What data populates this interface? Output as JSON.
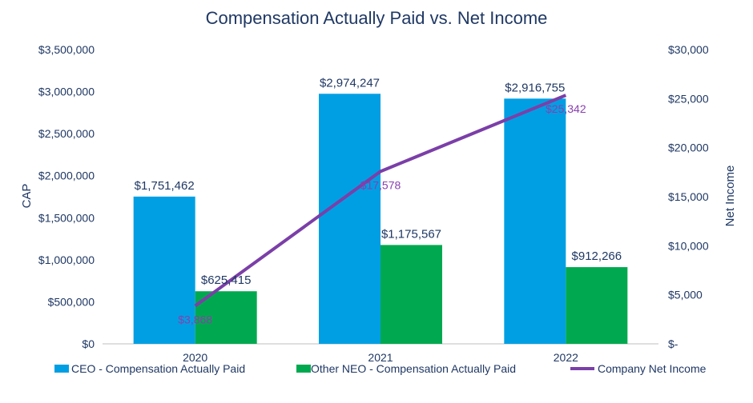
{
  "chart_data": {
    "type": "bar+line",
    "title": "Compensation Actually Paid vs. Net Income",
    "categories": [
      "2020",
      "2021",
      "2022"
    ],
    "series": [
      {
        "name": "CEO - Compensation Actually Paid",
        "type": "bar",
        "axis": "left",
        "color": "#009fe3",
        "values": [
          1751462,
          2974247,
          2916755
        ],
        "labels": [
          "$1,751,462",
          "$2,974,247",
          "$2,916,755"
        ]
      },
      {
        "name": "Other NEO - Compensation Actually Paid",
        "type": "bar",
        "axis": "left",
        "color": "#00a94f",
        "values": [
          625415,
          1175567,
          912266
        ],
        "labels": [
          "$625,415",
          "$1,175,567",
          "$912,266"
        ]
      },
      {
        "name": "Company Net Income",
        "type": "line",
        "axis": "right",
        "color": "#7b3fa8",
        "values": [
          3868,
          17578,
          25342
        ],
        "labels": [
          "$3,868",
          "$17,578",
          "$25,342"
        ]
      }
    ],
    "ylabel": "CAP",
    "ylim": [
      0,
      3500000
    ],
    "y_ticks": [
      "$0",
      "$500,000",
      "$1,000,000",
      "$1,500,000",
      "$2,000,000",
      "$2,500,000",
      "$3,000,000",
      "$3,500,000"
    ],
    "y2label": "Net Income",
    "y2lim": [
      0,
      30000
    ],
    "y2_ticks": [
      "$-",
      "$5,000",
      "$10,000",
      "$15,000",
      "$20,000",
      "$25,000",
      "$30,000"
    ],
    "legend_position": "bottom",
    "grid": false
  }
}
